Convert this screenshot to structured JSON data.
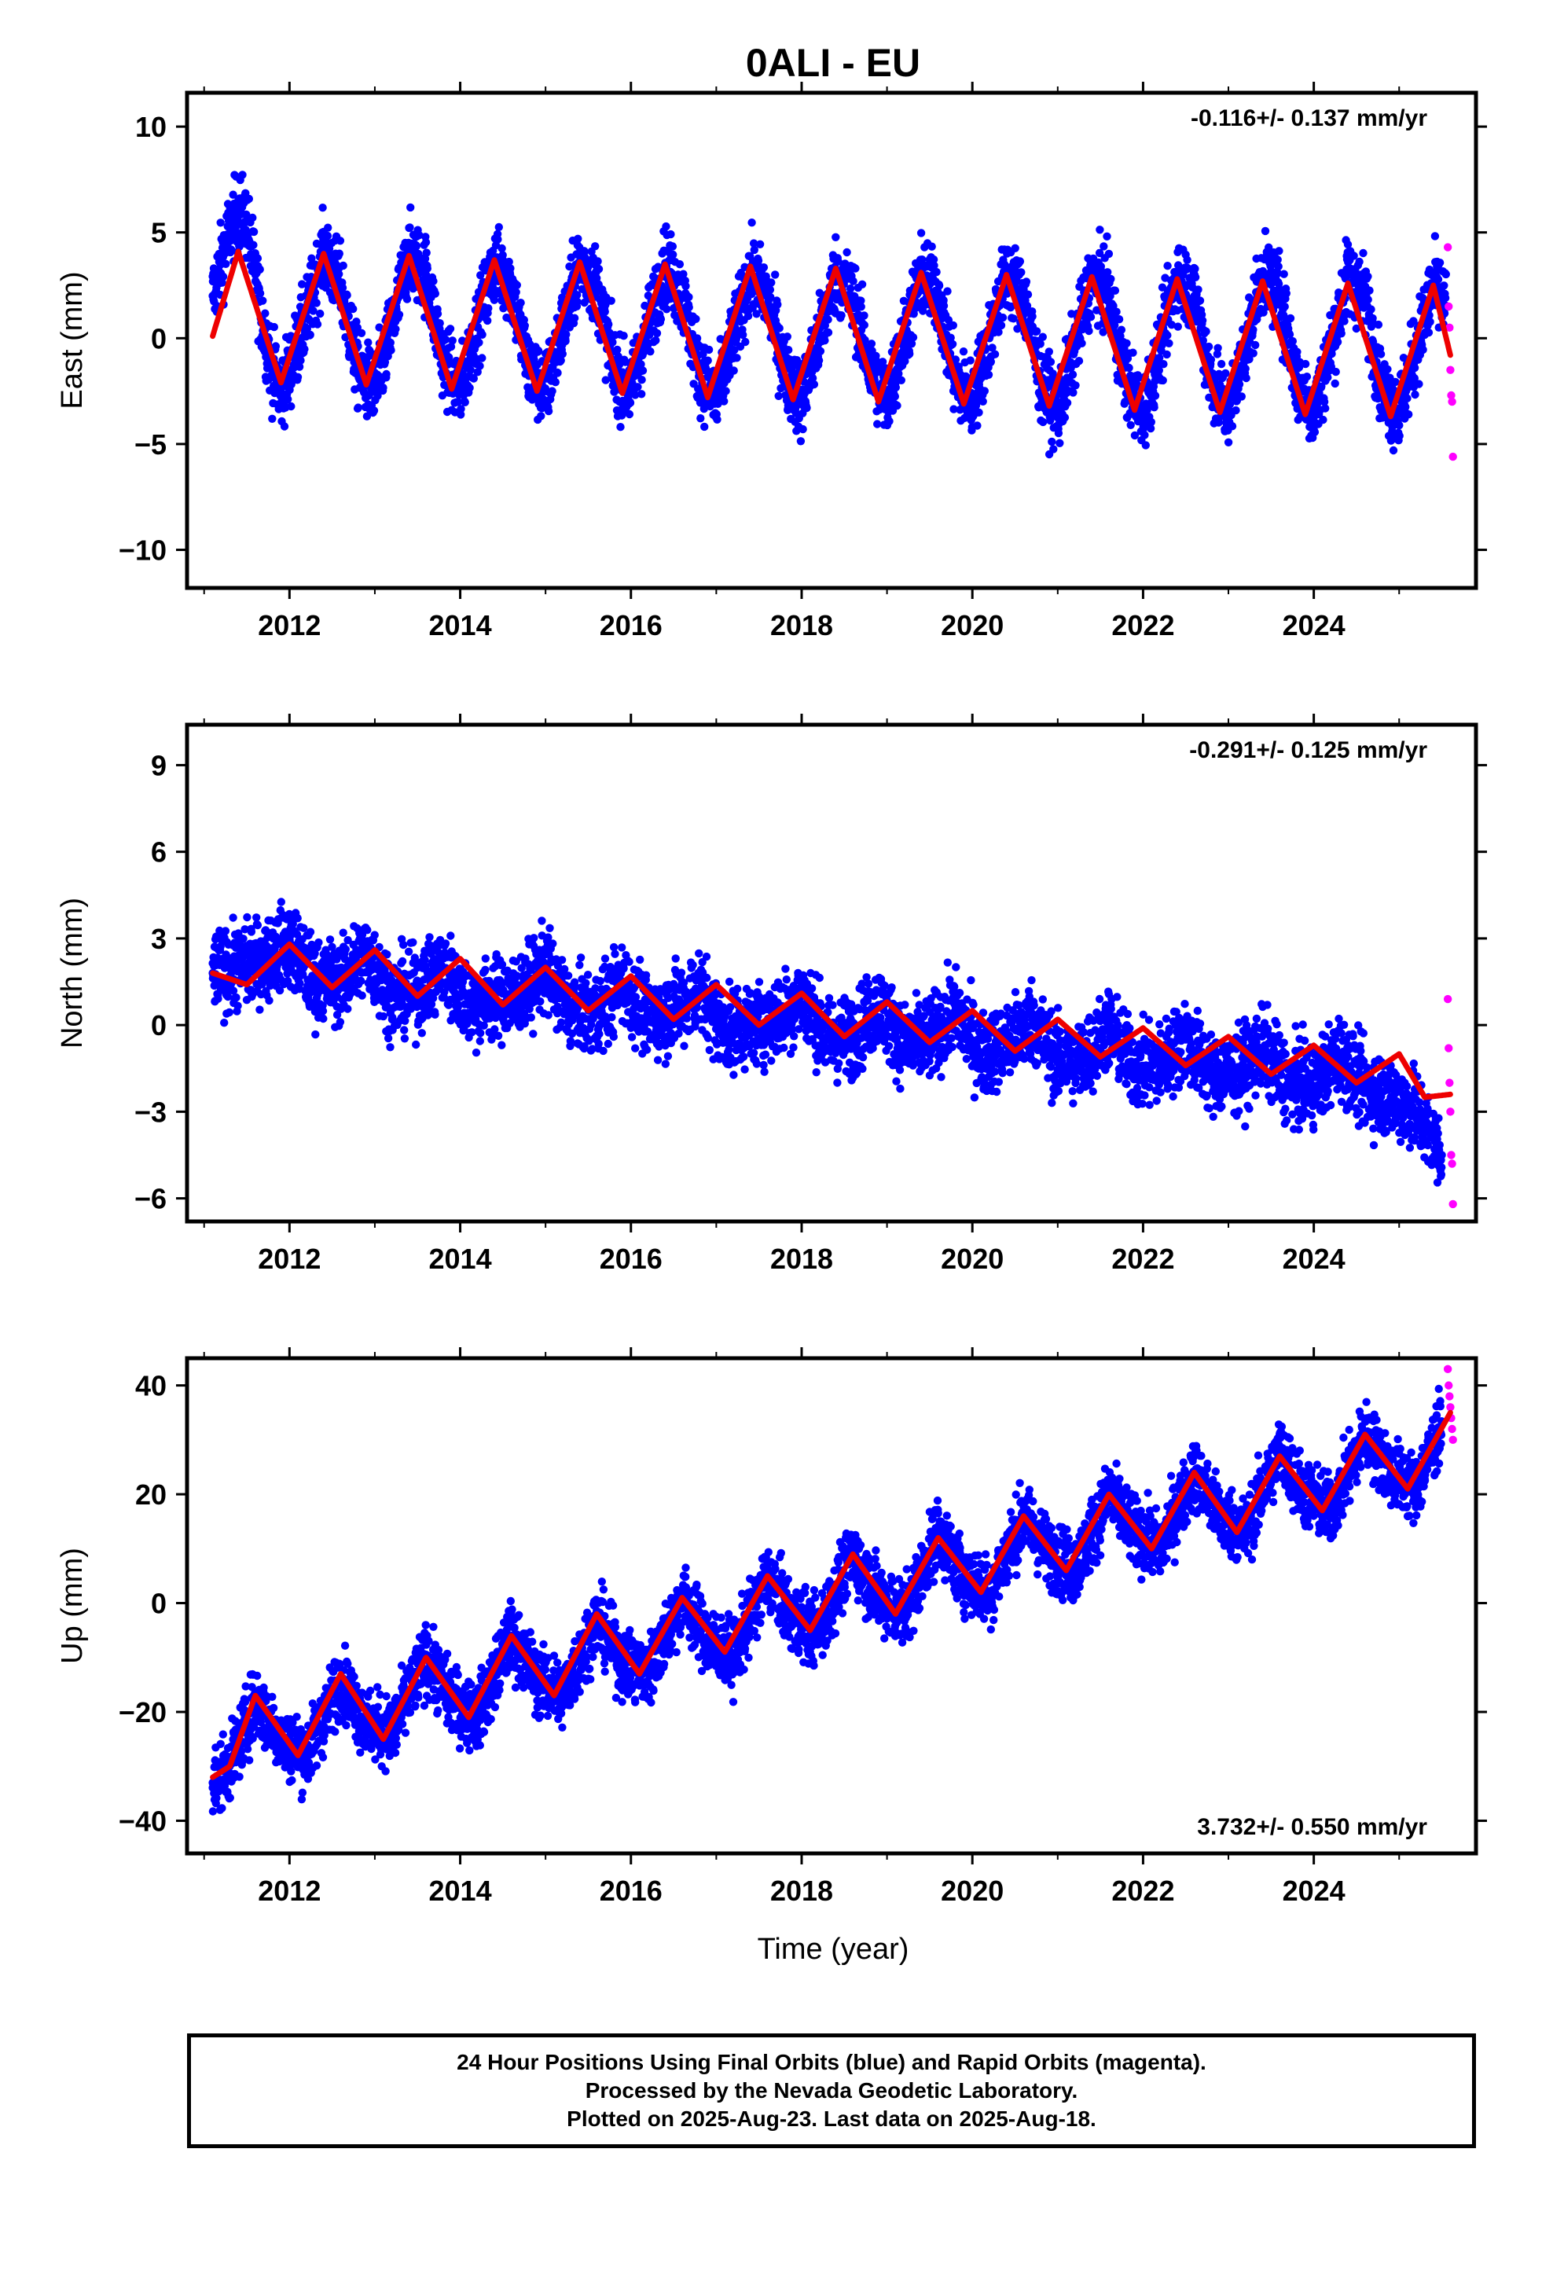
{
  "figure": {
    "title": "0ALI - EU",
    "xlabel": "Time (year)",
    "x_tick_labels": [
      "2012",
      "2014",
      "2016",
      "2018",
      "2020",
      "2022",
      "2024"
    ]
  },
  "colors": {
    "final_orbits": "#0000ff",
    "rapid_orbits": "#ff00ff",
    "model_fit": "#ee0000",
    "frame": "#000000"
  },
  "caption": {
    "line1": "24 Hour Positions Using Final Orbits (blue) and Rapid Orbits (magenta).",
    "line2": "Processed by the Nevada Geodetic Laboratory.",
    "line3": "Plotted on 2025-Aug-23. Last data on 2025-Aug-18."
  },
  "chart_data": [
    {
      "type": "scatter",
      "component": "east",
      "ylabel": "East (mm)",
      "rate_label": "-0.116+/- 0.137 mm/yr",
      "rate_position": "top-right",
      "xlim": [
        2010.8,
        2025.9
      ],
      "ylim": [
        -11.8,
        11.6
      ],
      "y_ticks": [
        10,
        5,
        0,
        -5,
        -10
      ],
      "y_tick_labels": [
        "10",
        "5",
        "0",
        "−5",
        "−10"
      ],
      "grid": false,
      "series": [
        {
          "name": "Final Orbits (blue)",
          "x": [
            2011.1,
            2011.2,
            2011.3,
            2011.4,
            2011.5,
            2011.6,
            2011.7,
            2011.8,
            2011.9,
            2012.0,
            2012.2,
            2012.4,
            2012.6,
            2012.8,
            2013.0,
            2013.2,
            2013.4,
            2013.6,
            2013.8,
            2014.0,
            2014.2,
            2014.4,
            2014.6,
            2014.8,
            2015.0,
            2015.2,
            2015.4,
            2015.6,
            2015.8,
            2016.0,
            2016.2,
            2016.4,
            2016.6,
            2016.8,
            2017.0,
            2017.2,
            2017.4,
            2017.6,
            2017.8,
            2018.0,
            2018.2,
            2018.4,
            2018.6,
            2018.8,
            2019.0,
            2019.2,
            2019.4,
            2019.6,
            2019.8,
            2020.0,
            2020.2,
            2020.4,
            2020.6,
            2020.8,
            2021.0,
            2021.2,
            2021.4,
            2021.6,
            2021.8,
            2022.0,
            2022.2,
            2022.4,
            2022.6,
            2022.8,
            2023.0,
            2023.2,
            2023.4,
            2023.6,
            2023.8,
            2024.0,
            2024.2,
            2024.4,
            2024.6,
            2024.8,
            2025.0,
            2025.2,
            2025.4,
            2025.55
          ],
          "y": [
            2.0,
            3.5,
            5.2,
            6.0,
            5.5,
            3.0,
            0.5,
            -1.5,
            -2.5,
            -1.5,
            1.0,
            4.0,
            2.5,
            -1.5,
            -2.5,
            0.5,
            4.0,
            3.0,
            -1.0,
            -2.5,
            0.5,
            3.5,
            2.5,
            -1.5,
            -2.5,
            0.5,
            3.5,
            2.5,
            -1.5,
            -2.5,
            0.5,
            3.5,
            2.0,
            -1.5,
            -3.0,
            0.0,
            3.0,
            2.0,
            -1.5,
            -3.0,
            0.0,
            3.0,
            2.0,
            -1.5,
            -3.0,
            0.0,
            3.0,
            2.0,
            -2.0,
            -3.0,
            0.0,
            3.0,
            2.0,
            -2.0,
            -3.5,
            -0.5,
            3.0,
            2.0,
            -2.0,
            -3.5,
            -0.5,
            3.0,
            2.0,
            -2.0,
            -3.5,
            -0.5,
            3.0,
            2.0,
            -2.0,
            -3.5,
            -0.5,
            3.0,
            2.0,
            -2.5,
            -3.5,
            -0.5,
            2.5,
            1.5
          ]
        },
        {
          "name": "Rapid Orbits (magenta)",
          "x": [
            2025.57,
            2025.58,
            2025.59,
            2025.6,
            2025.61,
            2025.62,
            2025.63
          ],
          "y": [
            4.3,
            1.5,
            0.5,
            -1.5,
            -2.7,
            -3.0,
            -5.6
          ]
        },
        {
          "name": "Model fit",
          "x": [
            2011.1,
            2011.4,
            2011.9,
            2012.4,
            2012.9,
            2013.4,
            2013.9,
            2014.4,
            2014.9,
            2015.4,
            2015.9,
            2016.4,
            2016.9,
            2017.4,
            2017.9,
            2018.4,
            2018.9,
            2019.4,
            2019.9,
            2020.4,
            2020.9,
            2021.4,
            2021.9,
            2022.4,
            2022.9,
            2023.4,
            2023.9,
            2024.4,
            2024.9,
            2025.4,
            2025.6
          ],
          "y": [
            0.1,
            4.1,
            -2.1,
            4.0,
            -2.2,
            3.9,
            -2.4,
            3.7,
            -2.5,
            3.6,
            -2.6,
            3.5,
            -2.8,
            3.4,
            -2.9,
            3.3,
            -3.0,
            3.1,
            -3.1,
            3.0,
            -3.2,
            2.9,
            -3.4,
            2.8,
            -3.5,
            2.7,
            -3.6,
            2.6,
            -3.7,
            2.5,
            -0.8
          ]
        }
      ]
    },
    {
      "type": "scatter",
      "component": "north",
      "ylabel": "North (mm)",
      "rate_label": "-0.291+/- 0.125 mm/yr",
      "rate_position": "top-right",
      "xlim": [
        2010.8,
        2025.9
      ],
      "ylim": [
        -6.8,
        10.4
      ],
      "y_ticks": [
        9,
        6,
        3,
        0,
        -3,
        -6
      ],
      "y_tick_labels": [
        "9",
        "6",
        "3",
        "0",
        "−3",
        "−6"
      ],
      "grid": false,
      "series": [
        {
          "name": "Final Orbits (blue)",
          "x": [
            2011.1,
            2011.4,
            2011.7,
            2012.0,
            2012.3,
            2012.6,
            2012.9,
            2013.2,
            2013.5,
            2013.8,
            2014.1,
            2014.4,
            2014.7,
            2015.0,
            2015.3,
            2015.6,
            2015.9,
            2016.2,
            2016.5,
            2016.8,
            2017.1,
            2017.4,
            2017.7,
            2018.0,
            2018.3,
            2018.6,
            2018.9,
            2019.2,
            2019.5,
            2019.8,
            2020.1,
            2020.4,
            2020.7,
            2021.0,
            2021.3,
            2021.6,
            2021.9,
            2022.2,
            2022.5,
            2022.8,
            2023.1,
            2023.4,
            2023.7,
            2024.0,
            2024.3,
            2024.6,
            2024.9,
            2025.2,
            2025.5
          ],
          "y": [
            1.8,
            2.0,
            2.3,
            2.8,
            1.5,
            1.5,
            2.5,
            1.0,
            1.2,
            2.0,
            0.7,
            0.9,
            1.0,
            2.0,
            0.5,
            0.4,
            1.5,
            0.2,
            0.5,
            1.2,
            -0.2,
            0.0,
            0.2,
            1.0,
            -0.5,
            -0.4,
            0.7,
            -0.7,
            -0.5,
            0.5,
            -1.0,
            -0.7,
            0.2,
            -1.3,
            -1.2,
            -0.1,
            -1.5,
            -1.4,
            -0.5,
            -1.7,
            -1.7,
            -0.8,
            -2.0,
            -2.1,
            -1.0,
            -2.2,
            -2.5,
            -3.0,
            -4.5
          ]
        },
        {
          "name": "Rapid Orbits (magenta)",
          "x": [
            2025.57,
            2025.58,
            2025.59,
            2025.6,
            2025.61,
            2025.62,
            2025.63
          ],
          "y": [
            0.9,
            -0.8,
            -2.0,
            -3.0,
            -4.5,
            -4.8,
            -6.2
          ]
        },
        {
          "name": "Model fit",
          "x": [
            2011.1,
            2011.5,
            2012.0,
            2012.5,
            2013.0,
            2013.5,
            2014.0,
            2014.5,
            2015.0,
            2015.5,
            2016.0,
            2016.5,
            2017.0,
            2017.5,
            2018.0,
            2018.5,
            2019.0,
            2019.5,
            2020.0,
            2020.5,
            2021.0,
            2021.5,
            2022.0,
            2022.5,
            2023.0,
            2023.5,
            2024.0,
            2024.5,
            2025.0,
            2025.3,
            2025.6
          ],
          "y": [
            1.8,
            1.4,
            2.8,
            1.3,
            2.6,
            1.0,
            2.3,
            0.7,
            2.0,
            0.5,
            1.7,
            0.2,
            1.4,
            0.0,
            1.1,
            -0.4,
            0.8,
            -0.6,
            0.5,
            -0.9,
            0.2,
            -1.1,
            -0.1,
            -1.4,
            -0.4,
            -1.7,
            -0.7,
            -2.0,
            -1.0,
            -2.5,
            -2.4
          ]
        }
      ]
    },
    {
      "type": "scatter",
      "component": "up",
      "ylabel": "Up (mm)",
      "rate_label": "3.732+/- 0.550 mm/yr",
      "rate_position": "bottom-right",
      "xlim": [
        2010.8,
        2025.9
      ],
      "ylim": [
        -46,
        45
      ],
      "y_ticks": [
        40,
        20,
        0,
        -20,
        -40
      ],
      "y_tick_labels": [
        "40",
        "20",
        "0",
        "−20",
        "−40"
      ],
      "grid": false,
      "series": [
        {
          "name": "Final Orbits (blue)",
          "x": [
            2011.1,
            2011.3,
            2011.6,
            2011.9,
            2012.2,
            2012.6,
            2012.9,
            2013.2,
            2013.6,
            2013.9,
            2014.2,
            2014.6,
            2014.9,
            2015.2,
            2015.6,
            2015.9,
            2016.2,
            2016.6,
            2016.9,
            2017.2,
            2017.6,
            2017.9,
            2018.2,
            2018.6,
            2018.9,
            2019.2,
            2019.6,
            2019.9,
            2020.2,
            2020.6,
            2020.9,
            2021.2,
            2021.6,
            2021.9,
            2022.2,
            2022.6,
            2022.9,
            2023.2,
            2023.6,
            2023.9,
            2024.2,
            2024.6,
            2024.9,
            2025.2,
            2025.5
          ],
          "y": [
            -33,
            -30,
            -18,
            -25,
            -28,
            -14,
            -22,
            -24,
            -10,
            -18,
            -21,
            -6,
            -14,
            -17,
            -3,
            -11,
            -13,
            1,
            -7,
            -10,
            5,
            -3,
            -5,
            9,
            1,
            -2,
            13,
            5,
            2,
            16,
            9,
            6,
            20,
            13,
            10,
            24,
            16,
            13,
            28,
            20,
            17,
            31,
            24,
            21,
            33
          ]
        },
        {
          "name": "Rapid Orbits (magenta)",
          "x": [
            2025.57,
            2025.58,
            2025.59,
            2025.6,
            2025.61,
            2025.62,
            2025.63
          ],
          "y": [
            43,
            40,
            38,
            36,
            34,
            32,
            30
          ]
        },
        {
          "name": "Model fit",
          "x": [
            2011.1,
            2011.3,
            2011.6,
            2012.1,
            2012.6,
            2013.1,
            2013.6,
            2014.1,
            2014.6,
            2015.1,
            2015.6,
            2016.1,
            2016.6,
            2017.1,
            2017.6,
            2018.1,
            2018.6,
            2019.1,
            2019.6,
            2020.1,
            2020.6,
            2021.1,
            2021.6,
            2022.1,
            2022.6,
            2023.1,
            2023.6,
            2024.1,
            2024.6,
            2025.1,
            2025.6
          ],
          "y": [
            -32,
            -30,
            -17,
            -28,
            -13,
            -25,
            -10,
            -21,
            -6,
            -17,
            -2,
            -13,
            1,
            -9,
            5,
            -5,
            9,
            -2,
            12,
            2,
            16,
            6,
            20,
            10,
            24,
            13,
            27,
            17,
            31,
            21,
            35
          ]
        }
      ]
    }
  ]
}
